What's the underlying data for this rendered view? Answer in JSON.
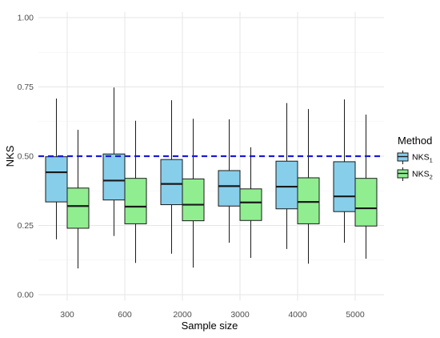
{
  "chart_data": {
    "type": "boxplot",
    "categories": [
      "300",
      "600",
      "2000",
      "3000",
      "4000",
      "5000"
    ],
    "xlabel": "Sample size",
    "ylabel": "NKS",
    "ylim": [
      0,
      1
    ],
    "yticks": [
      "0.00",
      "0.25",
      "0.50",
      "0.75",
      "1.00"
    ],
    "ytick_values": [
      0,
      0.25,
      0.5,
      0.75,
      1.0
    ],
    "reference_line": {
      "y": 0.5,
      "color": "#1a1adb",
      "style": "dashed"
    },
    "legend": {
      "title": "Method",
      "position": "right"
    },
    "grid": true,
    "series": [
      {
        "name_base": "NKS",
        "name_sub": "1",
        "color": "#87ceeb",
        "boxes": [
          {
            "min": 0.2,
            "q1": 0.335,
            "median": 0.442,
            "q3": 0.498,
            "max": 0.708
          },
          {
            "min": 0.212,
            "q1": 0.342,
            "median": 0.412,
            "q3": 0.508,
            "max": 0.748
          },
          {
            "min": 0.148,
            "q1": 0.325,
            "median": 0.4,
            "q3": 0.488,
            "max": 0.702
          },
          {
            "min": 0.188,
            "q1": 0.32,
            "median": 0.392,
            "q3": 0.448,
            "max": 0.633
          },
          {
            "min": 0.165,
            "q1": 0.31,
            "median": 0.39,
            "q3": 0.482,
            "max": 0.692
          },
          {
            "min": 0.188,
            "q1": 0.3,
            "median": 0.355,
            "q3": 0.48,
            "max": 0.705
          }
        ]
      },
      {
        "name_base": "NKS",
        "name_sub": "2",
        "color": "#90ee90",
        "boxes": [
          {
            "min": 0.095,
            "q1": 0.24,
            "median": 0.32,
            "q3": 0.385,
            "max": 0.595
          },
          {
            "min": 0.115,
            "q1": 0.256,
            "median": 0.318,
            "q3": 0.42,
            "max": 0.628
          },
          {
            "min": 0.098,
            "q1": 0.267,
            "median": 0.325,
            "q3": 0.418,
            "max": 0.635
          },
          {
            "min": 0.133,
            "q1": 0.268,
            "median": 0.333,
            "q3": 0.382,
            "max": 0.532
          },
          {
            "min": 0.112,
            "q1": 0.256,
            "median": 0.335,
            "q3": 0.422,
            "max": 0.67
          },
          {
            "min": 0.13,
            "q1": 0.248,
            "median": 0.312,
            "q3": 0.42,
            "max": 0.65
          }
        ]
      }
    ]
  }
}
